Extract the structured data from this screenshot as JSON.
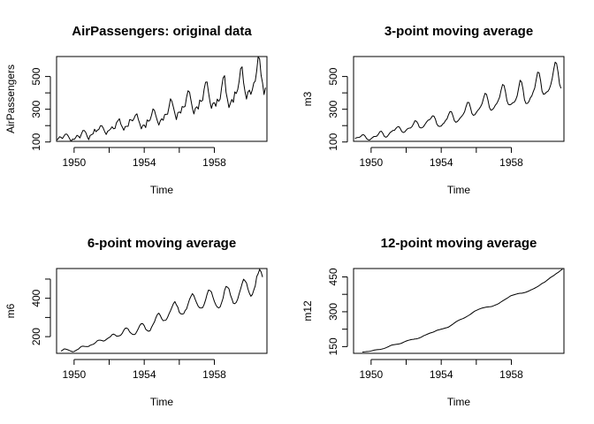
{
  "chart_data": [
    {
      "type": "line",
      "title": "AirPassengers: original data",
      "xlabel": "Time",
      "ylabel": "AirPassengers",
      "xlim": [
        1949,
        1961
      ],
      "ylim": [
        104,
        622
      ],
      "xticks": [
        "1950",
        "1954",
        "1958"
      ],
      "yticks": [
        "100",
        "300",
        "500"
      ],
      "ytick_values": [
        100,
        200,
        300,
        400,
        500
      ],
      "series": [
        {
          "x_start": 1949.0,
          "x_step": 0.08333,
          "values": [
            112,
            118,
            132,
            129,
            121,
            135,
            148,
            148,
            136,
            119,
            104,
            118,
            115,
            126,
            141,
            135,
            125,
            149,
            170,
            170,
            158,
            133,
            114,
            140,
            145,
            150,
            178,
            163,
            172,
            178,
            199,
            199,
            184,
            162,
            146,
            166,
            171,
            180,
            193,
            181,
            183,
            218,
            230,
            242,
            209,
            191,
            172,
            194,
            196,
            196,
            236,
            235,
            229,
            243,
            264,
            272,
            237,
            211,
            180,
            201,
            204,
            188,
            235,
            227,
            234,
            264,
            302,
            293,
            259,
            229,
            203,
            229,
            242,
            233,
            267,
            269,
            270,
            315,
            364,
            347,
            312,
            274,
            237,
            278,
            284,
            277,
            317,
            313,
            318,
            374,
            413,
            405,
            355,
            306,
            271,
            306,
            315,
            301,
            356,
            348,
            355,
            422,
            465,
            467,
            404,
            347,
            305,
            336,
            340,
            318,
            362,
            348,
            363,
            435,
            491,
            505,
            404,
            359,
            310,
            337,
            360,
            342,
            406,
            396,
            420,
            472,
            548,
            559,
            463,
            407,
            362,
            405,
            417,
            391,
            419,
            461,
            472,
            535,
            622,
            606,
            508,
            461,
            390,
            432
          ]
        }
      ]
    },
    {
      "type": "line",
      "title": "3-point moving average",
      "xlabel": "Time",
      "ylabel": "m3",
      "xlim": [
        1949,
        1961
      ],
      "ylim": [
        104,
        622
      ],
      "xticks": [
        "1950",
        "1954",
        "1958"
      ],
      "yticks": [
        "100",
        "300",
        "500"
      ],
      "ytick_values": [
        100,
        200,
        300,
        400,
        500
      ],
      "series": [
        {
          "x_start": 1949.0833,
          "x_step": 0.08333,
          "values": [
            120.7,
            126.3,
            127.3,
            128.3,
            134.7,
            143.7,
            144,
            134.3,
            119.7,
            113.7,
            112.3,
            119.7,
            127.3,
            134,
            133.7,
            136.3,
            148,
            163,
            166,
            153.7,
            135,
            129,
            133,
            145,
            157.7,
            163.7,
            171,
            171,
            183,
            192,
            194,
            181.7,
            164,
            158,
            161,
            172.3,
            181.3,
            184.7,
            185.7,
            194,
            210.3,
            230,
            227,
            214,
            190.7,
            185.7,
            187.3,
            195.3,
            209.3,
            222.3,
            233.3,
            235.7,
            245.3,
            259.7,
            257.7,
            240,
            209.3,
            197.3,
            195,
            197.7,
            209,
            216.7,
            232,
            241.7,
            266.7,
            286.3,
            284.7,
            260.3,
            230.3,
            220.3,
            224.7,
            234.7,
            247.3,
            256.3,
            268.7,
            284.7,
            316.3,
            342,
            341,
            311,
            274.3,
            263,
            266.3,
            279.7,
            292.7,
            302.7,
            316.3,
            335,
            368.3,
            397.3,
            391,
            355.3,
            310.7,
            294.3,
            297.3,
            307.3,
            324,
            335,
            353,
            375,
            417.3,
            451.3,
            445.3,
            406,
            352,
            329.3,
            327,
            331.3,
            340,
            342.7,
            357.7,
            382,
            429.7,
            477,
            466.7,
            422.7,
            357.7,
            335.3,
            335.7,
            346.3,
            369.3,
            381.3,
            407.3,
            429.3,
            480,
            526.3,
            523.3,
            476.3,
            410.7,
            391.3,
            394.7,
            404.3,
            409,
            423.7,
            450.7,
            489.3,
            543,
            587.7,
            578.7,
            525,
            453,
            427.7
          ]
        }
      ]
    },
    {
      "type": "line",
      "title": "6-point moving average",
      "xlabel": "Time",
      "ylabel": "m6",
      "xlim": [
        1949,
        1961
      ],
      "ylim": [
        113,
        555
      ],
      "xticks": [
        "1950",
        "1954",
        "1958"
      ],
      "yticks": [
        "200",
        "400"
      ],
      "ytick_values": [
        200,
        300,
        400,
        500
      ],
      "series": [
        {
          "x_start": 1949.25,
          "x_step": 0.08333,
          "values": [
            124.6,
            128.8,
            135.5,
            135.8,
            133.2,
            130.7,
            127.2,
            123.8,
            121,
            122.5,
            127.3,
            131.5,
            135.3,
            142.8,
            149,
            150.5,
            149.5,
            148.4,
            148.2,
            149.4,
            154.7,
            157.6,
            160,
            164.6,
            171.4,
            179.5,
            181.4,
            181.6,
            180,
            176.8,
            179.2,
            185.3,
            190.9,
            195.7,
            200.8,
            210.4,
            213.2,
            209.6,
            202.9,
            202.7,
            204.5,
            208.4,
            218.2,
            233,
            243.8,
            244.8,
            239.6,
            225,
            217.6,
            211.9,
            210.8,
            214,
            227.5,
            242.5,
            258.7,
            267.8,
            267.5,
            257.1,
            238.5,
            232.5,
            228,
            230.9,
            248.8,
            263.2,
            276.8,
            298.9,
            315.4,
            322.4,
            310.1,
            293.1,
            283.1,
            284.8,
            287.1,
            300.7,
            319.2,
            335.5,
            353.8,
            372.5,
            382.6,
            366.1,
            353.3,
            327,
            319,
            317.8,
            319.3,
            336.1,
            344.8,
            369.5,
            393.9,
            410.3,
            424.3,
            413.3,
            392.2,
            374.2,
            357.8,
            350,
            349.3,
            351.1,
            367.6,
            391.2,
            420.1,
            442.8,
            440.2,
            433,
            407,
            383.7,
            365.8,
            354.3,
            349.5,
            355.3,
            377.7,
            401.2,
            440.8,
            461.8,
            457.6,
            449.5,
            417.8,
            397.2,
            374,
            371.8,
            378.6,
            396,
            423.8,
            449.2,
            476.3,
            499.4,
            490.7,
            480,
            448.5,
            426.1,
            410.5,
            419.2,
            442.9,
            464.8,
            512.8,
            528.6,
            550.6,
            537.5,
            510.4
          ]
        }
      ]
    },
    {
      "type": "line",
      "title": "12-point moving average",
      "xlabel": "Time",
      "ylabel": "m12",
      "xlim": [
        1949,
        1961
      ],
      "ylim": [
        121,
        486
      ],
      "xticks": [
        "1950",
        "1954",
        "1958"
      ],
      "yticks": [
        "150",
        "300",
        "450"
      ],
      "ytick_values": [
        150,
        225,
        300,
        375,
        450
      ],
      "series": [
        {
          "x_start": 1949.5,
          "x_step": 0.08333,
          "values": [
            126.8,
            127.2,
            127.9,
            128.6,
            129,
            129.8,
            131.2,
            132.8,
            134.6,
            135.8,
            136.8,
            137.4,
            137.7,
            138.8,
            140.3,
            142.1,
            144.5,
            147.3,
            150,
            153.5,
            156.1,
            157.5,
            158.7,
            159.6,
            160.4,
            161.3,
            162.7,
            165.2,
            168.1,
            171.2,
            173.8,
            176.1,
            177.8,
            179.4,
            180.7,
            181.5,
            182.6,
            183.4,
            184.9,
            187.1,
            189.8,
            192.9,
            196.8,
            199.2,
            202.2,
            204.6,
            207.5,
            209.5,
            211.2,
            213.6,
            216.9,
            219.8,
            221.7,
            223.3,
            225.1,
            226.6,
            228.4,
            230.3,
            231.7,
            234,
            238.1,
            242.4,
            246.8,
            251.5,
            256.2,
            260,
            263.5,
            266.3,
            268.5,
            270.9,
            274,
            277.4,
            281.2,
            285,
            289.1,
            293.8,
            298.5,
            302.9,
            305.7,
            308.4,
            311.3,
            313.6,
            315.9,
            317.4,
            318.8,
            320,
            320.8,
            321.4,
            322.2,
            323.6,
            326.1,
            328.8,
            331.2,
            334.1,
            338.1,
            342.5,
            346.6,
            350.2,
            353.9,
            357.8,
            361.9,
            366.3,
            369.6,
            371.6,
            373.5,
            375.2,
            377,
            378.6,
            379.4,
            379.7,
            381,
            382.5,
            384.3,
            386.7,
            389.5,
            392.8,
            395.5,
            398.2,
            401.4,
            404.8,
            408.3,
            412.4,
            417.1,
            421.6,
            424.8,
            428.3,
            433.2,
            438.3,
            443.4,
            448.2,
            451.9,
            455.7,
            460.8,
            465.3,
            469,
            474.3,
            478.9,
            483.2
          ]
        }
      ]
    }
  ]
}
